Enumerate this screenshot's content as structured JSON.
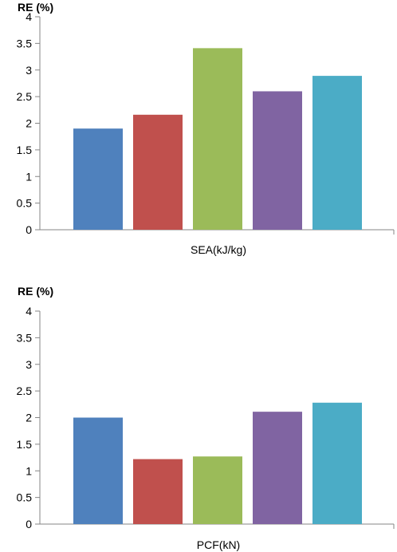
{
  "chart_data": [
    {
      "type": "bar",
      "ylabel": "RE (%)",
      "xlabel": "SEA(kJ/kg)",
      "ylim": [
        0,
        4
      ],
      "yticks": [
        "0",
        "0.5",
        "1",
        "1.5",
        "2",
        "2.5",
        "3",
        "3.5",
        "4"
      ],
      "grid": false,
      "values": [
        1.9,
        2.16,
        3.41,
        2.6,
        2.89
      ],
      "colors": [
        "#4f81bd",
        "#c0504d",
        "#9bbb59",
        "#8064a2",
        "#4bacc6"
      ]
    },
    {
      "type": "bar",
      "ylabel": "RE (%)",
      "xlabel": "PCF(kN)",
      "ylim": [
        0,
        4
      ],
      "yticks": [
        "0",
        "0.5",
        "1",
        "1.5",
        "2",
        "2.5",
        "3",
        "3.5",
        "4"
      ],
      "grid": false,
      "values": [
        2.0,
        1.22,
        1.27,
        2.11,
        2.28
      ],
      "colors": [
        "#4f81bd",
        "#c0504d",
        "#9bbb59",
        "#8064a2",
        "#4bacc6"
      ]
    }
  ]
}
